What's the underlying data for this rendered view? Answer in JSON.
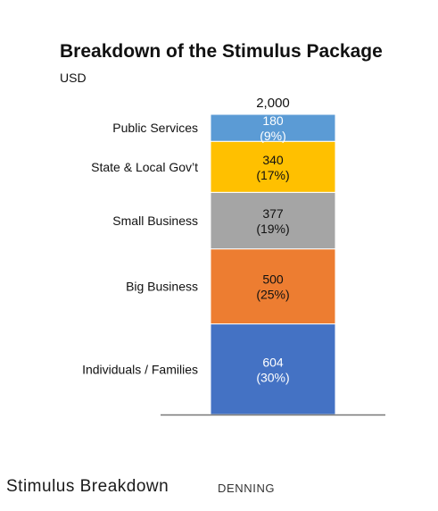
{
  "chart_data": {
    "type": "bar",
    "stacked": true,
    "title": "Breakdown of the Stimulus Package",
    "subtitle": "USD",
    "total_label": "2,000",
    "categories": [
      "Individuals / Families",
      "Big Business",
      "Small Business",
      "State & Local Gov’t",
      "Public Services"
    ],
    "values": [
      604,
      500,
      377,
      340,
      180
    ],
    "percent_labels": [
      "(30%)",
      "(25%)",
      "(19%)",
      "(17%)",
      "(9%)"
    ],
    "value_labels": [
      "604",
      "500",
      "377",
      "340",
      "180"
    ],
    "colors": [
      "#4472c4",
      "#ed7d31",
      "#a5a5a5",
      "#ffc000",
      "#5b9bd5"
    ],
    "label_colors": [
      "#ffffff",
      "#111111",
      "#111111",
      "#111111",
      "#ffffff"
    ],
    "grid": false,
    "legend": "none"
  },
  "footer": {
    "title": "Stimulus Breakdown",
    "author": "DENNING"
  }
}
